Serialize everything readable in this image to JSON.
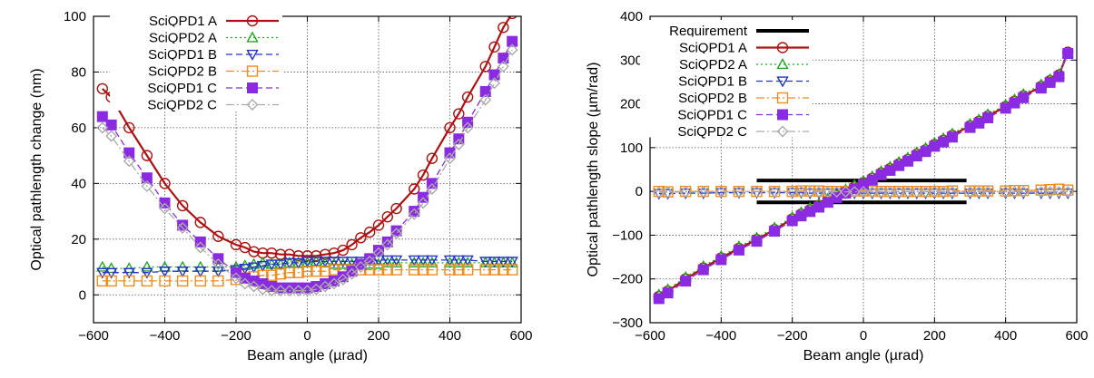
{
  "chart_data": [
    {
      "type": "line",
      "xlabel": "Beam angle (µrad)",
      "ylabel": "Optical pathlength change (nm)",
      "xlim": [
        -600,
        600
      ],
      "ylim": [
        -10,
        100
      ],
      "xticks": [
        -600,
        -400,
        -200,
        0,
        200,
        400,
        600
      ],
      "yticks": [
        0,
        20,
        40,
        60,
        80,
        100
      ],
      "grid": true,
      "legend_position": "top-left",
      "x": [
        -575,
        -550,
        -500,
        -450,
        -400,
        -350,
        -300,
        -250,
        -200,
        -175,
        -150,
        -125,
        -100,
        -75,
        -50,
        -25,
        0,
        25,
        50,
        75,
        100,
        125,
        150,
        175,
        200,
        225,
        250,
        300,
        325,
        350,
        400,
        425,
        450,
        500,
        525,
        550,
        575
      ],
      "series": [
        {
          "name": "SciQPD1 A",
          "color": "#b01010",
          "marker": "circle-open",
          "dash": "solid",
          "values": [
            74,
            71,
            60,
            50,
            40,
            32,
            26,
            21,
            18,
            17,
            15.5,
            15,
            15,
            14.5,
            14.5,
            14,
            14,
            14,
            14.5,
            15,
            16,
            18,
            20.5,
            22.5,
            25,
            28,
            31,
            38,
            43,
            49,
            60,
            65,
            71,
            82,
            89,
            96,
            101
          ]
        },
        {
          "name": "SciQPD2 A",
          "color": "#22aa22",
          "marker": "triangle-up-open",
          "dash": "dotted",
          "values": [
            10,
            9.5,
            9.5,
            10,
            10,
            10,
            10,
            10,
            10,
            10.5,
            11,
            11.5,
            11,
            11,
            11.5,
            11.5,
            11.5,
            12,
            11.5,
            11,
            11,
            11,
            11,
            11,
            11,
            11.5,
            11.5,
            11.5,
            11.5,
            11.5,
            11.5,
            11.5,
            11.5,
            11.5,
            11.5,
            11.5,
            11.5
          ]
        },
        {
          "name": "SciQPD1 B",
          "color": "#2233cc",
          "marker": "triangle-down-open",
          "dash": "dashed",
          "values": [
            8,
            8,
            8,
            8,
            8.5,
            8.5,
            8.5,
            8.5,
            9,
            9.5,
            10,
            10.5,
            11,
            11,
            11.5,
            11.5,
            12,
            12,
            12,
            12,
            12,
            12,
            12,
            12,
            12.5,
            12.5,
            12.5,
            12.5,
            12.5,
            12.5,
            12.5,
            12.5,
            12.5,
            12,
            12,
            12,
            12
          ]
        },
        {
          "name": "SciQPD2 B",
          "color": "#f08c1e",
          "marker": "square-open",
          "dash": "dashdot",
          "values": [
            5,
            5,
            5,
            5,
            5,
            5,
            5,
            5,
            5.5,
            6,
            6.5,
            7,
            7,
            7.5,
            8,
            8,
            8.5,
            8.5,
            8.5,
            9,
            9,
            9,
            9,
            9,
            9,
            9,
            9,
            9,
            9,
            9,
            9,
            9,
            9,
            9,
            9,
            9,
            9
          ]
        },
        {
          "name": "SciQPD1 C",
          "color": "#8a2be2",
          "marker": "square-filled",
          "dash": "dashed",
          "values": [
            64,
            61,
            51,
            42,
            33,
            25,
            19,
            13,
            8,
            6,
            5,
            4,
            3,
            2.5,
            2.5,
            2.5,
            2.5,
            3,
            4,
            5,
            6.5,
            8.5,
            11,
            13,
            16,
            19,
            23,
            30,
            35,
            40,
            51,
            56,
            62,
            73,
            79,
            85,
            91
          ]
        },
        {
          "name": "SciQPD2 C",
          "color": "#aaaaaa",
          "marker": "diamond-open",
          "dash": "dashdot",
          "values": [
            60,
            57,
            48,
            39,
            31,
            24,
            17,
            11,
            6,
            4,
            3,
            2,
            1.5,
            1.5,
            1.5,
            1.5,
            1.5,
            2,
            3,
            4,
            5.5,
            7.5,
            10,
            12,
            15,
            18,
            22,
            29,
            33,
            38,
            49,
            54,
            60,
            70,
            76,
            82,
            88
          ]
        }
      ]
    },
    {
      "type": "line",
      "xlabel": "Beam angle (µrad)",
      "ylabel": "Optical pathlength slope (µm/rad)",
      "xlim": [
        -600,
        600
      ],
      "ylim": [
        -300,
        400
      ],
      "xticks": [
        -600,
        -400,
        -200,
        0,
        200,
        400,
        600
      ],
      "yticks": [
        -300,
        -200,
        -100,
        0,
        100,
        200,
        300,
        400
      ],
      "grid": true,
      "legend_position": "top-left",
      "x": [
        -575,
        -550,
        -500,
        -450,
        -400,
        -350,
        -300,
        -250,
        -200,
        -175,
        -150,
        -125,
        -100,
        -75,
        -50,
        -25,
        0,
        25,
        50,
        75,
        100,
        125,
        150,
        175,
        200,
        225,
        250,
        300,
        325,
        350,
        400,
        425,
        450,
        500,
        525,
        550,
        575
      ],
      "series": [
        {
          "name": "Requirement",
          "color": "#000000",
          "marker": "none",
          "dash": "solid",
          "x_range": [
            -300,
            290
          ],
          "bands": [
            25,
            -25
          ]
        },
        {
          "name": "SciQPD1 A",
          "color": "#b01010",
          "marker": "circle-open",
          "dash": "solid",
          "values": [
            -240,
            -228,
            -200,
            -175,
            -152,
            -130,
            -110,
            -87,
            -63,
            -52,
            -42,
            -32,
            -21,
            -10,
            0,
            10,
            20,
            30,
            42,
            52,
            63,
            73,
            85,
            95,
            107,
            117,
            128,
            150,
            160,
            172,
            194,
            206,
            218,
            240,
            253,
            266,
            318
          ]
        },
        {
          "name": "SciQPD2 A",
          "color": "#22aa22",
          "marker": "triangle-up-open",
          "dash": "dotted",
          "values": [
            -236,
            -224,
            -196,
            -171,
            -148,
            -126,
            -106,
            -83,
            -59,
            -48,
            -38,
            -28,
            -17,
            -6,
            4,
            14,
            24,
            34,
            46,
            56,
            67,
            77,
            89,
            99,
            111,
            121,
            132,
            154,
            164,
            176,
            198,
            210,
            222,
            244,
            256,
            268,
            316
          ]
        },
        {
          "name": "SciQPD1 B",
          "color": "#2233cc",
          "marker": "triangle-down-open",
          "dash": "dashed",
          "values": [
            -5,
            -5,
            -4,
            -4,
            -3,
            -3,
            -3,
            -3,
            -3,
            -3,
            -4,
            -4,
            -4,
            -4,
            -4,
            -4,
            -4,
            -4,
            -4,
            -4,
            -4,
            -4,
            -4,
            -4,
            -4,
            -4,
            -4,
            -4,
            -4,
            -4,
            -4,
            -4,
            -4,
            -4,
            -4,
            -4,
            -4
          ]
        },
        {
          "name": "SciQPD2 B",
          "color": "#f08c1e",
          "marker": "square-open",
          "dash": "dashdot",
          "values": [
            0,
            -1,
            0,
            0,
            0,
            0,
            0,
            0,
            0,
            1,
            1,
            1,
            0,
            0,
            0,
            1,
            1,
            1,
            0,
            0,
            0,
            0,
            0,
            0,
            0,
            0,
            1,
            1,
            1,
            1,
            1,
            2,
            2,
            3,
            4,
            5,
            3
          ]
        },
        {
          "name": "SciQPD1 C",
          "color": "#8a2be2",
          "marker": "square-filled",
          "dash": "dashed",
          "values": [
            -245,
            -232,
            -205,
            -179,
            -156,
            -134,
            -114,
            -91,
            -67,
            -56,
            -46,
            -36,
            -25,
            -14,
            -4,
            6,
            16,
            26,
            38,
            48,
            59,
            69,
            81,
            91,
            103,
            113,
            124,
            146,
            156,
            168,
            190,
            202,
            214,
            236,
            249,
            262,
            315
          ]
        },
        {
          "name": "SciQPD2 C",
          "color": "#aaaaaa",
          "marker": "diamond-open",
          "dash": "dashdot",
          "values": [
            -2,
            -2,
            -1,
            -1,
            -1,
            -1,
            -1,
            -1,
            -1,
            -1,
            -1,
            -1,
            -1,
            -1,
            -1,
            -1,
            -1,
            -1,
            -1,
            -1,
            -1,
            -1,
            -1,
            -1,
            -1,
            -1,
            -1,
            -1,
            -1,
            -1,
            -1,
            -1,
            -1,
            -1,
            -1,
            -1,
            -1
          ]
        }
      ]
    }
  ]
}
